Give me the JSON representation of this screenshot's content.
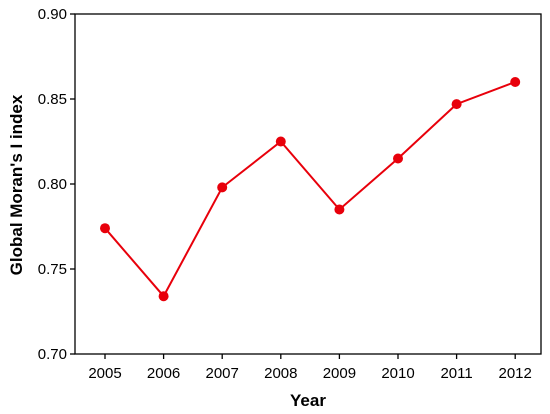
{
  "chart_data": {
    "type": "line",
    "title": "",
    "xlabel": "Year",
    "ylabel": "Global Moran's I index",
    "categories": [
      "2005",
      "2006",
      "2007",
      "2008",
      "2009",
      "2010",
      "2011",
      "2012"
    ],
    "series": [
      {
        "values": [
          0.774,
          0.734,
          0.798,
          0.825,
          0.785,
          0.815,
          0.847,
          0.86
        ],
        "color": "#e8000b"
      }
    ],
    "ylim": [
      0.7,
      0.9
    ],
    "yticks": [
      "0.70",
      "0.75",
      "0.80",
      "0.85",
      "0.90"
    ],
    "grid": false,
    "legend": "none"
  }
}
